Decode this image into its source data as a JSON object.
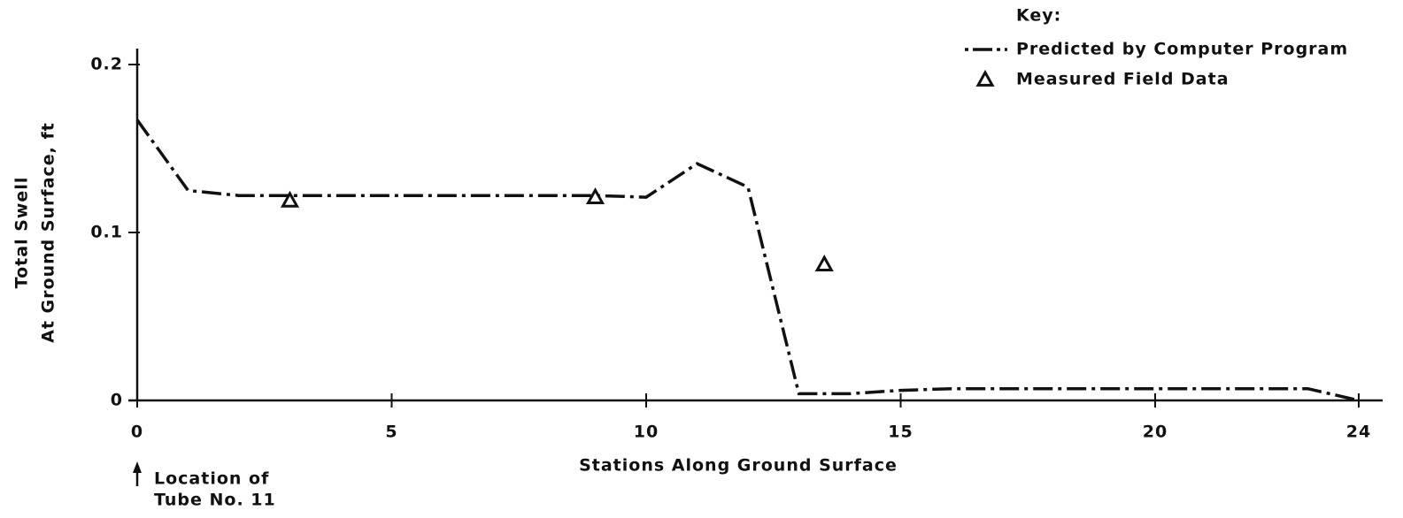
{
  "chart_data": {
    "type": "line",
    "xlabel": "Stations Along Ground Surface",
    "ylabel": [
      "Total Swell",
      "At Ground Surface, ft"
    ],
    "legend_title": "Key:",
    "annotation": [
      "Location of",
      "Tube No. 11"
    ],
    "xlim": [
      0,
      24
    ],
    "ylim": [
      0,
      0.2
    ],
    "xticks": [
      0,
      5,
      10,
      15,
      20,
      24
    ],
    "yticks": [
      0,
      0.1,
      0.2
    ],
    "series": [
      {
        "name": "Predicted by Computer Program",
        "color": "#111111",
        "style": "dash-dot",
        "x": [
          0,
          1,
          2,
          3,
          4,
          5,
          6,
          7,
          8,
          9,
          10,
          11,
          12,
          13,
          14,
          15,
          16,
          17,
          18,
          19,
          20,
          21,
          22,
          23,
          24
        ],
        "values": [
          0.167,
          0.125,
          0.122,
          0.122,
          0.122,
          0.122,
          0.122,
          0.122,
          0.122,
          0.122,
          0.121,
          0.141,
          0.127,
          0.004,
          0.004,
          0.006,
          0.007,
          0.007,
          0.007,
          0.007,
          0.007,
          0.007,
          0.007,
          0.007,
          0
        ]
      },
      {
        "name": "Measured Field Data",
        "color": "#111111",
        "marker": "triangle",
        "x": [
          3,
          9,
          13.5
        ],
        "values": [
          0.119,
          0.121,
          0.081
        ]
      }
    ]
  }
}
